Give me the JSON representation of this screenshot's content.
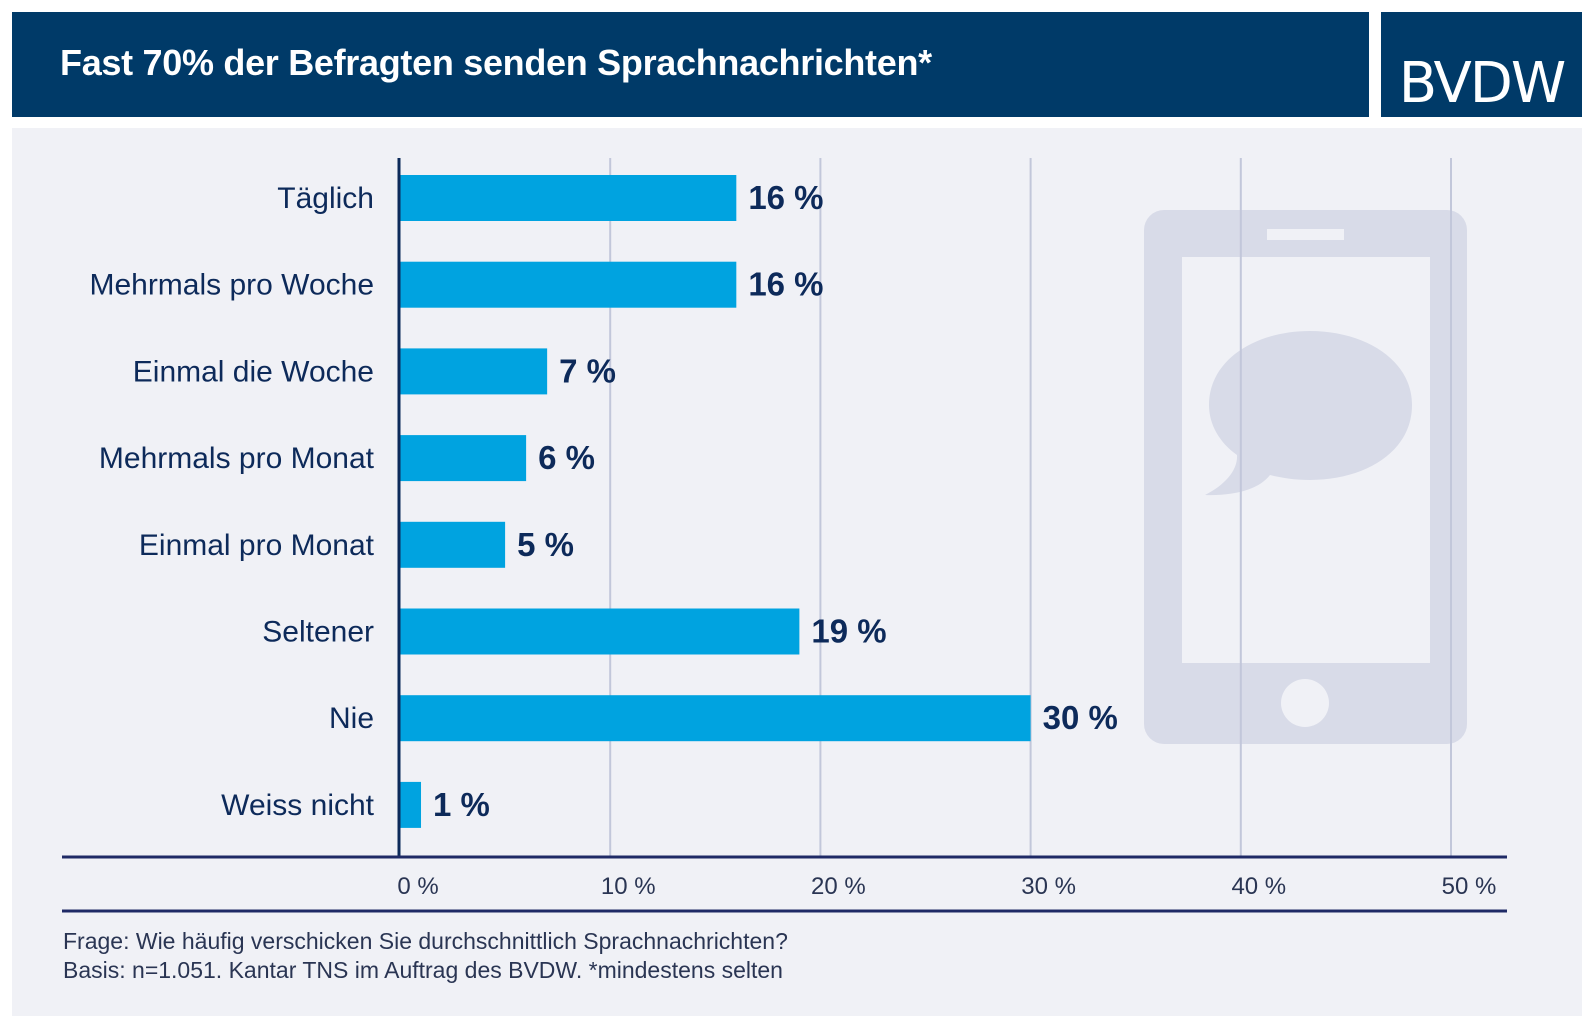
{
  "header": {
    "title": "Fast 70% der Befragten senden Sprachnachrichten*",
    "logo": "BVDW"
  },
  "colors": {
    "header_bg": "#003a68",
    "bar": "#00a3e0",
    "label_text": "#0d2a5a",
    "grid": "#c2c7da",
    "panel_bg": "#f0f1f6",
    "illustration": "#d8dbe8"
  },
  "illustration": {
    "icon": "smartphone-with-speech-bubble-icon"
  },
  "chart_data": {
    "type": "bar",
    "orientation": "horizontal",
    "categories": [
      "Täglich",
      "Mehrmals pro Woche",
      "Einmal die Woche",
      "Mehrmals pro Monat",
      "Einmal pro Monat",
      "Seltener",
      "Nie",
      "Weiss nicht"
    ],
    "values": [
      16,
      16,
      7,
      6,
      5,
      19,
      30,
      1
    ],
    "value_labels": [
      "16 %",
      "16 %",
      "7 %",
      "6 %",
      "5 %",
      "19 %",
      "30 %",
      "1 %"
    ],
    "xlim": [
      0,
      50
    ],
    "xticks": [
      0,
      10,
      20,
      30,
      40,
      50
    ],
    "xtick_labels": [
      "0 %",
      "10 %",
      "20 %",
      "30 %",
      "40 %",
      "50 %"
    ],
    "grid": true,
    "legend": "none"
  },
  "footnotes": [
    "Frage: Wie häufig verschicken Sie durchschnittlich Sprachnachrichten?",
    "Basis: n=1.051. Kantar TNS im Auftrag des BVDW. *mindestens selten"
  ]
}
